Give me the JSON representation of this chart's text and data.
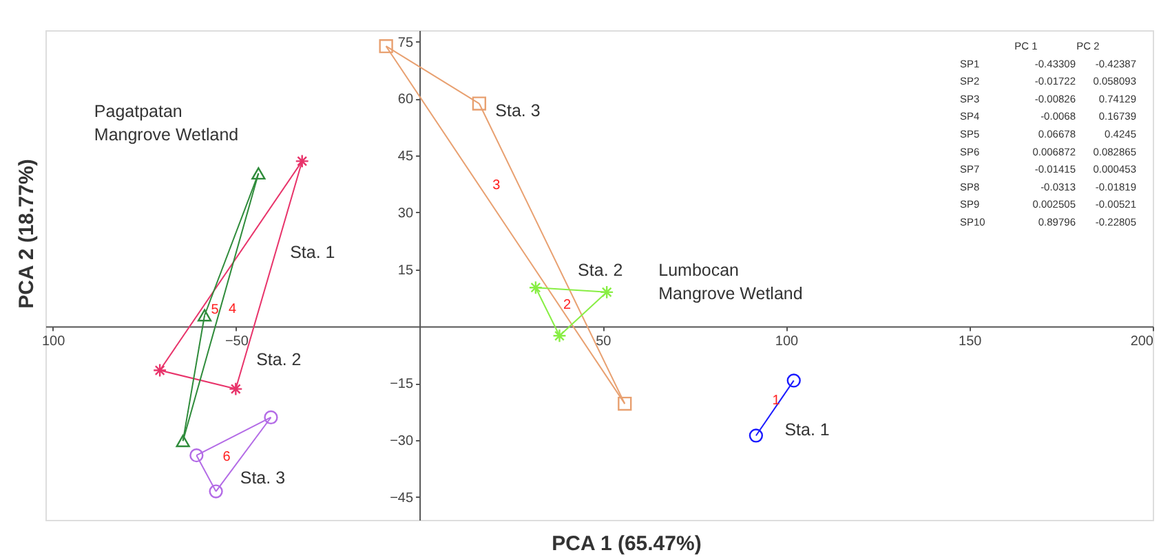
{
  "chart_data": {
    "type": "scatter",
    "xlabel": "PCA 1 (65.47%)",
    "ylabel": "PCA 2 (18.77%)",
    "xlim": [
      -102,
      200
    ],
    "ylim": [
      -51,
      78
    ],
    "xticks": [
      {
        "value": -100,
        "label": "100"
      },
      -50,
      50,
      100,
      150,
      200
    ],
    "yticks": [
      -45,
      -30,
      -15,
      15,
      30,
      45,
      60,
      75
    ],
    "grid": false,
    "series": [
      {
        "color": "#e8336a",
        "marker": "cross",
        "x": [
          -32,
          -70.8,
          -50.1
        ],
        "values": [
          43.5,
          -11.6,
          -16.5
        ]
      },
      {
        "color": "#2e8b3a",
        "marker": "triangle",
        "x": [
          -43.9,
          -58.6,
          -64.5
        ],
        "values": [
          40.3,
          2.9,
          -30.2
        ]
      },
      {
        "color": "#b36be6",
        "marker": "circle",
        "x": [
          -40.5,
          -60.8,
          -55.5
        ],
        "values": [
          -24,
          -34,
          -43.5
        ]
      },
      {
        "color": "#e8a070",
        "marker": "square",
        "x": [
          -9.1,
          16.3,
          56
        ],
        "values": [
          73.8,
          58.7,
          -20.4
        ]
      },
      {
        "color": "#88ee44",
        "marker": "cross",
        "x": [
          31.7,
          51.1,
          38.2
        ],
        "values": [
          10.2,
          9.0,
          -2.5
        ]
      },
      {
        "color": "#1a1aff",
        "marker": "circle",
        "x": [
          91.8,
          102.1
        ],
        "values": [
          -28.8,
          -14.3
        ]
      },
      {
        "type": "line",
        "color": "#e8336a",
        "marker": "none",
        "x": [
          -70.8,
          -32
        ],
        "values": [
          -11.6,
          43.5
        ]
      },
      {
        "type": "line",
        "color": "#e8336a",
        "marker": "none",
        "x": [
          -70.8,
          -50.1
        ],
        "values": [
          -11.6,
          -16.5
        ]
      },
      {
        "type": "line",
        "color": "#e8336a",
        "marker": "none",
        "x": [
          -50.1,
          -32
        ],
        "values": [
          -16.5,
          43.5
        ]
      },
      {
        "type": "line",
        "color": "#2e8b3a",
        "marker": "none",
        "x": [
          -58.6,
          -43.9
        ],
        "values": [
          2.9,
          40.3
        ]
      },
      {
        "type": "line",
        "color": "#2e8b3a",
        "marker": "none",
        "x": [
          -64.5,
          -58.6
        ],
        "values": [
          -30.2,
          2.9
        ]
      },
      {
        "type": "line",
        "color": "#2e8b3a",
        "marker": "none",
        "x": [
          -64.5,
          -43.9
        ],
        "values": [
          -30.2,
          40.3
        ]
      },
      {
        "type": "line",
        "color": "#b36be6",
        "marker": "none",
        "x": [
          -60.8,
          -40.5
        ],
        "values": [
          -34,
          -24
        ]
      },
      {
        "type": "line",
        "color": "#b36be6",
        "marker": "none",
        "x": [
          -60.8,
          -55.5
        ],
        "values": [
          -34,
          -43.5
        ]
      },
      {
        "type": "line",
        "color": "#b36be6",
        "marker": "none",
        "x": [
          -55.5,
          -40.5
        ],
        "values": [
          -43.5,
          -24
        ]
      },
      {
        "type": "line",
        "color": "#e8a070",
        "marker": "none",
        "x": [
          -9.1,
          16.3
        ],
        "values": [
          73.8,
          58.7
        ]
      },
      {
        "type": "line",
        "color": "#e8a070",
        "marker": "none",
        "x": [
          16.3,
          56
        ],
        "values": [
          58.7,
          -20.4
        ]
      },
      {
        "type": "line",
        "color": "#e8a070",
        "marker": "none",
        "x": [
          -9.1,
          56
        ],
        "values": [
          73.8,
          -20.4
        ]
      },
      {
        "type": "line",
        "color": "#88ee44",
        "marker": "none",
        "x": [
          31.7,
          51.1
        ],
        "values": [
          10.2,
          9.0
        ]
      },
      {
        "type": "line",
        "color": "#88ee44",
        "marker": "none",
        "x": [
          31.7,
          38.2
        ],
        "values": [
          10.2,
          -2.5
        ]
      },
      {
        "type": "line",
        "color": "#88ee44",
        "marker": "none",
        "x": [
          38.2,
          51.1
        ],
        "values": [
          -2.5,
          9.0
        ]
      },
      {
        "type": "line",
        "color": "#1a1aff",
        "marker": "none",
        "x": [
          91.8,
          102.1
        ],
        "values": [
          -28.8,
          -14.3
        ]
      }
    ],
    "annotations": [
      "Pagatpatan\nMangrove Wetland",
      "Sta. 1",
      "Sta. 2",
      "Sta. 3",
      "Sta. 3",
      "Sta. 2",
      "Lumbocan\nMangrove Wetland",
      "Sta. 1",
      "1",
      "2",
      "3",
      "4",
      "5",
      "6",
      "PC 1  PC 2",
      "SP1  -0.43309  -0.42387",
      "SP2  -0.01722  0.058093",
      "SP3  -0.00826  0.74129",
      "SP4  -0.0068  0.16739",
      "SP5  0.06678  0.4245",
      "SP6  0.006872  0.082865",
      "SP7  -0.01415  0.000453",
      "SP8  -0.0313  -0.01819",
      "SP9  0.002505  -0.00521",
      "SP10  0.89796  -0.22805"
    ]
  }
}
